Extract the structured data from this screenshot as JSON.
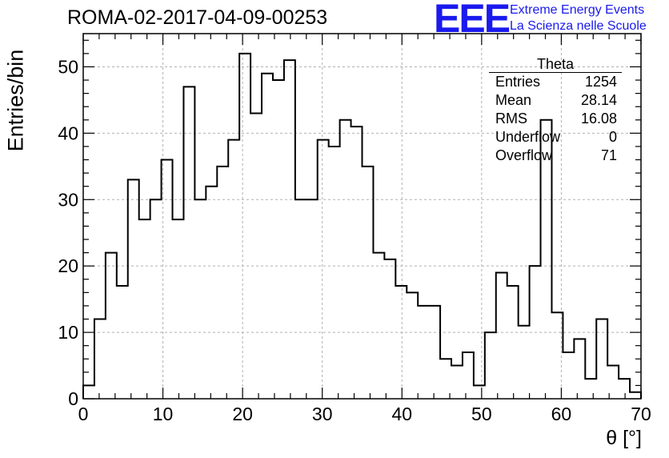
{
  "header": {
    "title": "ROMA-02-2017-04-09-00253",
    "logo_text": "EEE",
    "logo_line1": "Extreme Energy Events",
    "logo_line2": "La Scienza nelle Scuole",
    "brand_color": "#1a1aee"
  },
  "stats_box": {
    "title": "Theta",
    "rows": [
      {
        "label": "Entries",
        "value": "1254"
      },
      {
        "label": "Mean",
        "value": "28.14"
      },
      {
        "label": "RMS",
        "value": "16.08"
      },
      {
        "label": "Underflow",
        "value": "0"
      },
      {
        "label": "Overflow",
        "value": "71"
      }
    ]
  },
  "chart_data": {
    "type": "bar",
    "title": "ROMA-02-2017-04-09-00253",
    "xlabel": "θ [°]",
    "ylabel": "Entries/bin",
    "xlim": [
      0,
      70
    ],
    "ylim": [
      0,
      55
    ],
    "xticks": [
      0,
      10,
      20,
      30,
      40,
      50,
      60,
      70
    ],
    "yticks": [
      0,
      10,
      20,
      30,
      40,
      50
    ],
    "grid": true,
    "bin_width": 1.4,
    "bin_edges_start": 0,
    "values": [
      2,
      12,
      22,
      17,
      33,
      27,
      30,
      36,
      27,
      47,
      30,
      32,
      35,
      39,
      52,
      43,
      49,
      48,
      51,
      30,
      30,
      39,
      38,
      42,
      41,
      35,
      22,
      21,
      17,
      16,
      14,
      14,
      6,
      5,
      7,
      2,
      10,
      19,
      17,
      11,
      20,
      42,
      13,
      7,
      9,
      3,
      12,
      5,
      3,
      1
    ]
  }
}
